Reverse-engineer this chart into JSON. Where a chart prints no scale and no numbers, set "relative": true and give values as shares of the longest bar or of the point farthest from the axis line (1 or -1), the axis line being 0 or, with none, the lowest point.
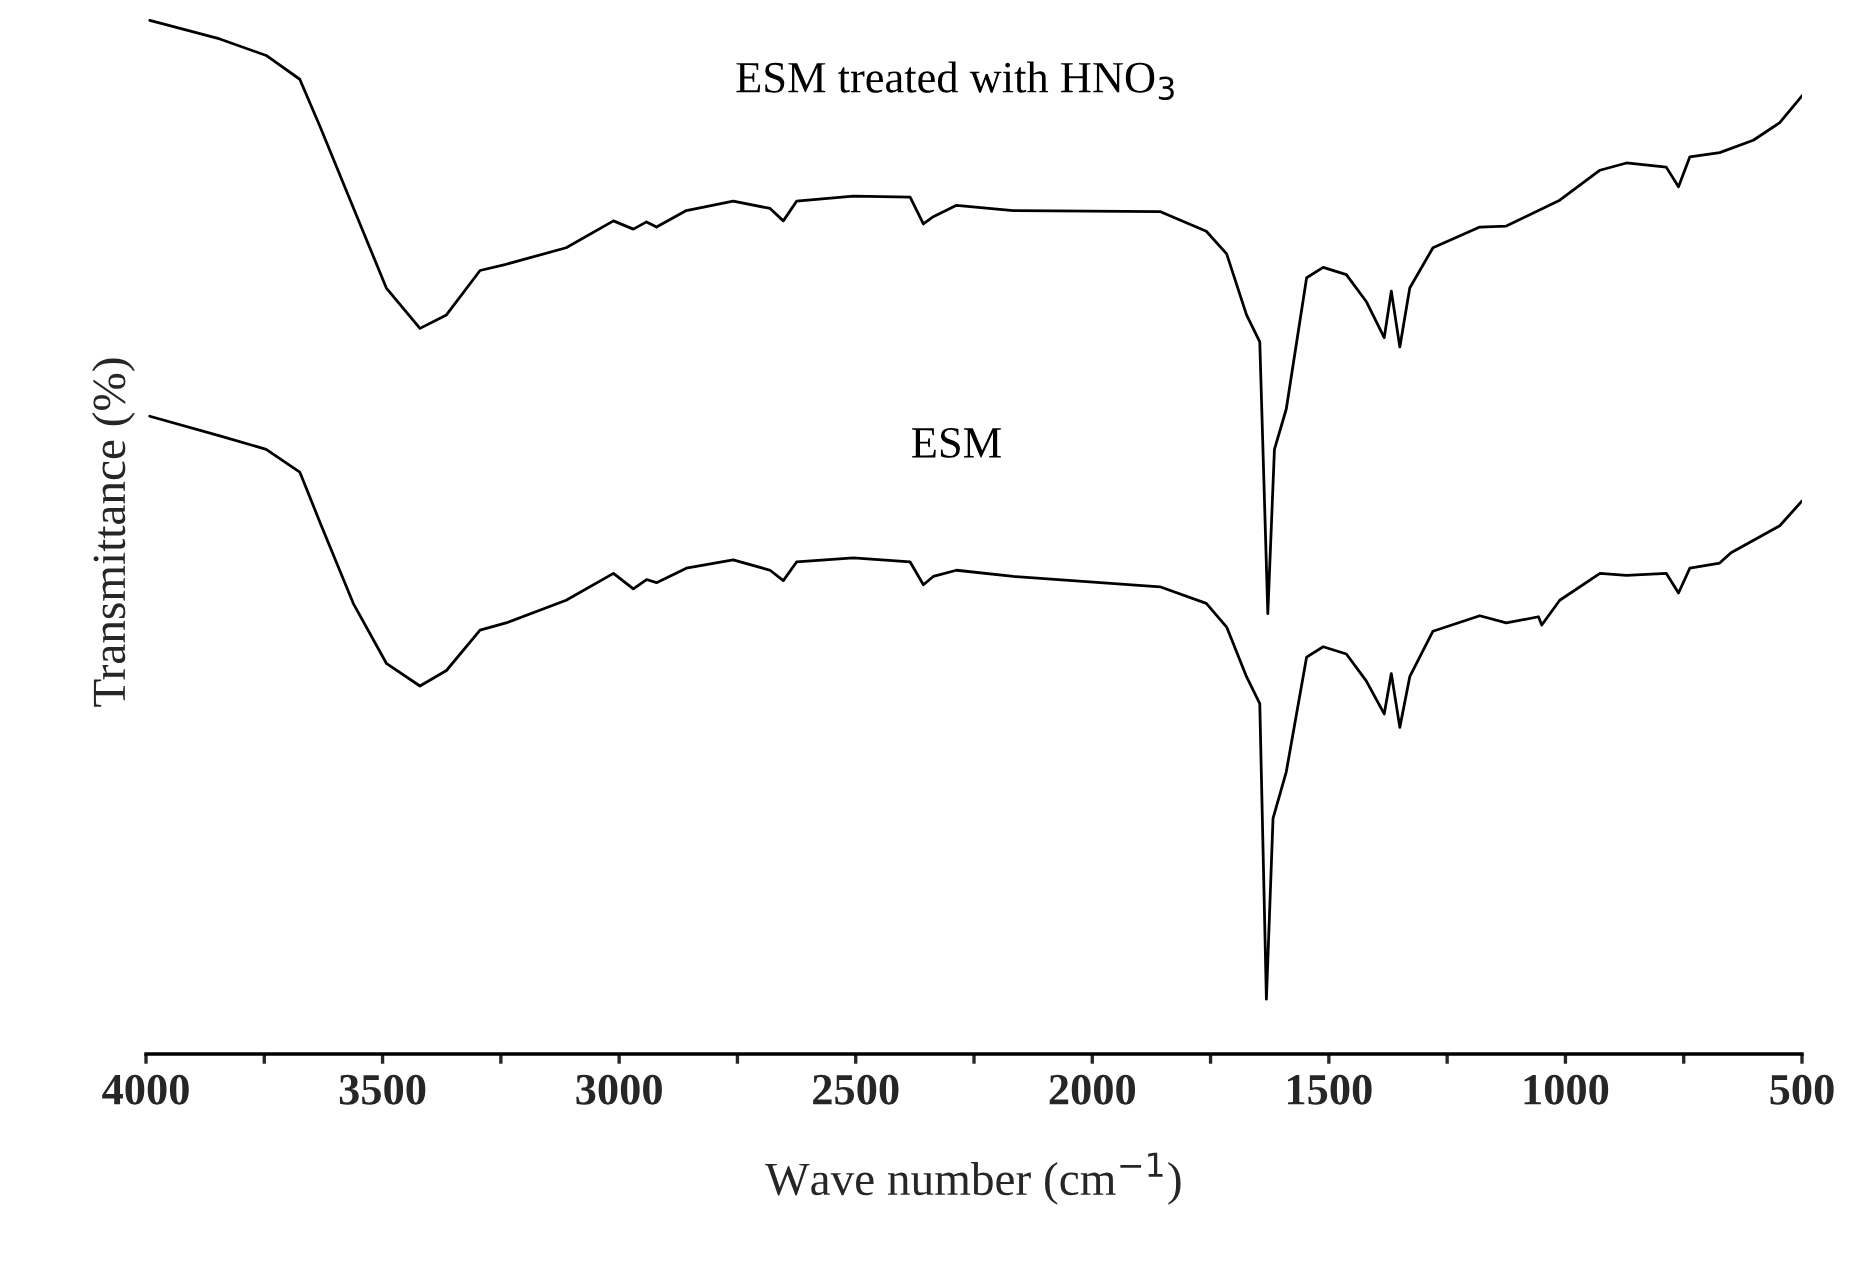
{
  "chart_data": {
    "type": "line",
    "relative": true,
    "xlabel": "Wave number (cm$^{−1}$)",
    "ylabel": "Transmittance (%)",
    "xlim": [
      4000,
      500
    ],
    "xticks": [
      4000,
      {
        "value": 3750,
        "label": null
      },
      3500,
      {
        "value": 3250,
        "label": null
      },
      3000,
      {
        "value": 2750,
        "label": null
      },
      2500,
      {
        "value": 2250,
        "label": null
      },
      2000,
      {
        "value": 1750,
        "label": null
      },
      1500,
      {
        "value": 1250,
        "label": null
      },
      1000,
      {
        "value": 750,
        "label": null
      },
      500
    ],
    "x": [
      3992,
      3844,
      3746,
      3675,
      3632,
      3562,
      3492,
      3421,
      3365,
      3294,
      3239,
      3112,
      3012,
      2970,
      2942,
      2921,
      2858,
      2759,
      2681,
      2653,
      2625,
      2505,
      2385,
      2357,
      2336,
      2287,
      2167,
      1857,
      1759,
      1716,
      1674,
      1646,
      1629,
      1615,
      1590,
      1547,
      1512,
      1463,
      1421,
      1383,
      1368,
      1350,
      1329,
      1280,
      1181,
      1125,
      1012,
      927,
      871,
      787,
      761,
      737,
      674,
      603,
      547,
      500
    ],
    "series": [
      {
        "name": "ESM treated with HNO$_{3}$",
        "color": "#000000",
        "values": [
          1.0,
          0.982,
          0.966,
          0.943,
          0.897,
          0.819,
          0.741,
          0.702,
          0.715,
          0.758,
          0.764,
          0.78,
          0.806,
          0.798,
          0.805,
          0.8,
          0.816,
          0.825,
          0.818,
          0.806,
          0.825,
          0.83,
          0.829,
          0.803,
          0.81,
          0.821,
          0.816,
          0.815,
          0.796,
          0.774,
          0.715,
          0.689,
          0.426,
          0.585,
          0.624,
          0.751,
          0.761,
          0.754,
          0.728,
          0.693,
          0.738,
          0.684,
          0.741,
          0.78,
          0.8,
          0.801,
          0.826,
          0.855,
          0.862,
          0.858,
          0.839,
          0.868,
          0.872,
          0.884,
          0.901,
          0.927
        ]
      },
      {
        "name": "ESM",
        "color": "#000000",
        "x": [
          3992,
          3844,
          3746,
          3675,
          3632,
          3562,
          3492,
          3421,
          3365,
          3294,
          3239,
          3112,
          3012,
          2970,
          2942,
          2921,
          2858,
          2759,
          2681,
          2653,
          2625,
          2505,
          2385,
          2357,
          2336,
          2287,
          2167,
          1857,
          1759,
          1716,
          1674,
          1646,
          1632,
          1618,
          1590,
          1547,
          1512,
          1463,
          1421,
          1383,
          1368,
          1350,
          1329,
          1280,
          1181,
          1125,
          1057,
          1050,
          1012,
          927,
          871,
          787,
          761,
          737,
          674,
          650,
          547,
          500
        ],
        "values": [
          0.617,
          0.598,
          0.585,
          0.563,
          0.514,
          0.436,
          0.378,
          0.356,
          0.371,
          0.41,
          0.417,
          0.439,
          0.465,
          0.45,
          0.459,
          0.456,
          0.47,
          0.478,
          0.468,
          0.458,
          0.476,
          0.48,
          0.476,
          0.454,
          0.462,
          0.468,
          0.462,
          0.452,
          0.436,
          0.413,
          0.365,
          0.339,
          0.053,
          0.228,
          0.273,
          0.384,
          0.394,
          0.387,
          0.361,
          0.329,
          0.368,
          0.316,
          0.365,
          0.409,
          0.424,
          0.417,
          0.423,
          0.415,
          0.439,
          0.465,
          0.463,
          0.465,
          0.446,
          0.47,
          0.475,
          0.485,
          0.511,
          0.535
        ]
      }
    ]
  }
}
